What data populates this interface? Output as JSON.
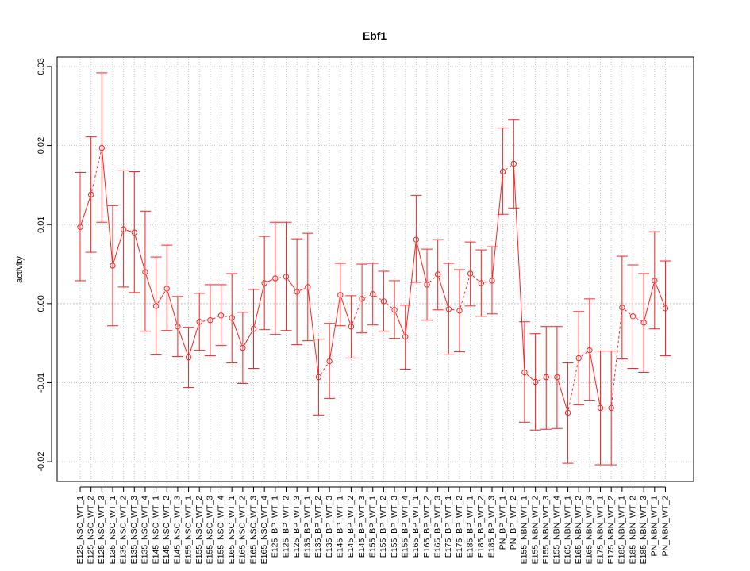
{
  "chart_data": {
    "type": "line",
    "title": "Ebf1",
    "xlabel": "",
    "ylabel": "activity",
    "ylim": [
      -0.0225,
      0.0312
    ],
    "yticks": [
      -0.02,
      -0.01,
      0.0,
      0.01,
      0.02,
      0.03
    ],
    "ytick_labels": [
      "-0.02",
      "-0.01",
      "0.00",
      "0.01",
      "0.02",
      "0.03"
    ],
    "grid": true,
    "zero_line": true,
    "colors": {
      "series": "#ff2020",
      "grid": "#c8c8c8",
      "axis": "#000000"
    },
    "categories": [
      "E125_NSC_WT_1",
      "E125_NSC_WT_2",
      "E125_NSC_WT_3",
      "E135_NSC_WT_1",
      "E135_NSC_WT_2",
      "E135_NSC_WT_3",
      "E135_NSC_WT_4",
      "E145_NSC_WT_1",
      "E145_NSC_WT_2",
      "E145_NSC_WT_3",
      "E155_NSC_WT_1",
      "E155_NSC_WT_2",
      "E155_NSC_WT_3",
      "E155_NSC_WT_4",
      "E165_NSC_WT_1",
      "E165_NSC_WT_2",
      "E165_NSC_WT_3",
      "E165_NSC_WT_4",
      "E125_BP_WT_1",
      "E125_BP_WT_2",
      "E125_BP_WT_3",
      "E135_BP_WT_1",
      "E135_BP_WT_2",
      "E135_BP_WT_3",
      "E145_BP_WT_1",
      "E145_BP_WT_2",
      "E145_BP_WT_3",
      "E155_BP_WT_1",
      "E155_BP_WT_2",
      "E155_BP_WT_3",
      "E155_BP_WT_4",
      "E165_BP_WT_1",
      "E165_BP_WT_2",
      "E165_BP_WT_3",
      "E175_BP_WT_1",
      "E175_BP_WT_2",
      "E185_BP_WT_1",
      "E185_BP_WT_2",
      "E185_BP_WT_3",
      "PN_BP_WT_1",
      "PN_BP_WT_2",
      "E155_NBN_WT_1",
      "E155_NBN_WT_2",
      "E155_NBN_WT_3",
      "E155_NBN_WT_4",
      "E165_NBN_WT_1",
      "E165_NBN_WT_2",
      "E165_NBN_WT_3",
      "E175_NBN_WT_1",
      "E175_NBN_WT_2",
      "E185_NBN_WT_1",
      "E185_NBN_WT_2",
      "E185_NBN_WT_3",
      "PN_NBN_WT_1",
      "PN_NBN_WT_2"
    ],
    "values": [
      0.0097,
      0.0138,
      0.0197,
      0.0048,
      0.0094,
      0.009,
      0.004,
      -0.0003,
      0.0019,
      -0.0029,
      -0.0068,
      -0.0023,
      -0.0021,
      -0.0015,
      -0.0018,
      -0.0056,
      -0.0032,
      0.0026,
      0.0032,
      0.0034,
      0.0015,
      0.0021,
      -0.0093,
      -0.0073,
      0.0011,
      -0.0029,
      0.0006,
      0.0012,
      0.0003,
      -0.0008,
      -0.0042,
      0.0081,
      0.0024,
      0.0037,
      -0.0007,
      -0.0009,
      0.0038,
      0.0026,
      0.0029,
      0.0167,
      0.0177,
      -0.0087,
      -0.0099,
      -0.0093,
      -0.0093,
      -0.0138,
      -0.0069,
      -0.0059,
      -0.0132,
      -0.0132,
      -0.0005,
      -0.0016,
      -0.0024,
      0.0029,
      -0.0006
    ],
    "lower": [
      0.0029,
      0.0065,
      0.0103,
      -0.0028,
      0.0021,
      0.0014,
      -0.0035,
      -0.0065,
      -0.0034,
      -0.0067,
      -0.0106,
      -0.0059,
      -0.0066,
      -0.0053,
      -0.0075,
      -0.0101,
      -0.0082,
      -0.0033,
      -0.0039,
      -0.0034,
      -0.0052,
      -0.0047,
      -0.0141,
      -0.012,
      -0.0028,
      -0.0069,
      -0.0037,
      -0.0027,
      -0.0035,
      -0.0044,
      -0.0083,
      0.0027,
      -0.0021,
      -0.0008,
      -0.0064,
      -0.0061,
      -0.0003,
      -0.0016,
      -0.0013,
      0.0113,
      0.0121,
      -0.015,
      -0.016,
      -0.0159,
      -0.0158,
      -0.0202,
      -0.0128,
      -0.0123,
      -0.0204,
      -0.0204,
      -0.007,
      -0.0082,
      -0.0087,
      -0.0032,
      -0.0066
    ],
    "upper": [
      0.0166,
      0.0211,
      0.0292,
      0.0124,
      0.0168,
      0.0167,
      0.0117,
      0.0059,
      0.0074,
      0.0009,
      -0.003,
      0.0013,
      0.0024,
      0.0024,
      0.0038,
      -0.0011,
      0.0018,
      0.0085,
      0.0103,
      0.0103,
      0.0082,
      0.0089,
      -0.0045,
      -0.0025,
      0.0051,
      0.001,
      0.005,
      0.0051,
      0.0041,
      0.0029,
      -0.0002,
      0.0137,
      0.0069,
      0.0081,
      0.0051,
      0.0043,
      0.0078,
      0.0068,
      0.0072,
      0.0222,
      0.0233,
      -0.0023,
      -0.0038,
      -0.0029,
      -0.0029,
      -0.0075,
      -0.001,
      0.0006,
      -0.006,
      -0.006,
      0.006,
      0.0049,
      0.0038,
      0.0091,
      0.0054
    ],
    "segment_style": [
      "solid",
      "dashed",
      "solid",
      "solid",
      "solid",
      "solid",
      "solid",
      "solid",
      "solid",
      "solid",
      "solid",
      "dashed",
      "dashed",
      "dashed",
      "solid",
      "solid",
      "solid",
      "solid",
      "dashed",
      "solid",
      "solid",
      "solid",
      "dashed",
      "solid",
      "solid",
      "dashed",
      "dashed",
      "dashed",
      "dashed",
      "solid",
      "solid",
      "solid",
      "dashed",
      "solid",
      "dashed",
      "dashed",
      "dashed",
      "dashed",
      "solid",
      "dashed",
      "solid",
      "solid",
      "dashed",
      "dashed",
      "solid",
      "dashed",
      "dashed",
      "solid",
      "dashed",
      "dashed",
      "dashed",
      "dashed",
      "solid",
      "solid"
    ]
  }
}
